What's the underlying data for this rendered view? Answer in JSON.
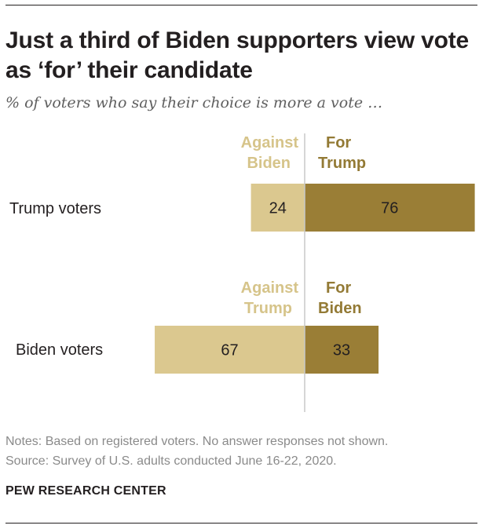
{
  "title": "Just a third of Biden supporters view vote as ‘for’ their candidate",
  "subtitle": "% of voters who say their choice is more a vote …",
  "chart_data": {
    "type": "bar",
    "orientation": "horizontal-diverging",
    "categories": [
      "Trump voters",
      "Biden voters"
    ],
    "series": [
      {
        "name": "Against opposing candidate",
        "values": [
          24,
          67
        ],
        "color": "#dbc88f"
      },
      {
        "name": "For own candidate",
        "values": [
          76,
          33
        ],
        "color": "#9a7e36"
      }
    ],
    "groups": [
      {
        "row_label": "Trump voters",
        "against_label": [
          "Against",
          "Biden"
        ],
        "for_label": [
          "For",
          "Trump"
        ],
        "against": 24,
        "for": 76
      },
      {
        "row_label": "Biden voters",
        "against_label": [
          "Against",
          "Trump"
        ],
        "for_label": [
          "For",
          "Biden"
        ],
        "against": 67,
        "for": 33
      }
    ],
    "xlim": [
      -100,
      100
    ],
    "colors": {
      "against": "#dbc88f",
      "for": "#9a7e36",
      "against_text": "#d6c48a",
      "for_text": "#937a35",
      "axis": "#c8c8c8",
      "value_text": "#231f20"
    }
  },
  "notes": [
    "Notes: Based on registered voters. No answer responses not shown.",
    "Source: Survey of U.S. adults conducted June 16-22, 2020."
  ],
  "org": "PEW RESEARCH CENTER"
}
